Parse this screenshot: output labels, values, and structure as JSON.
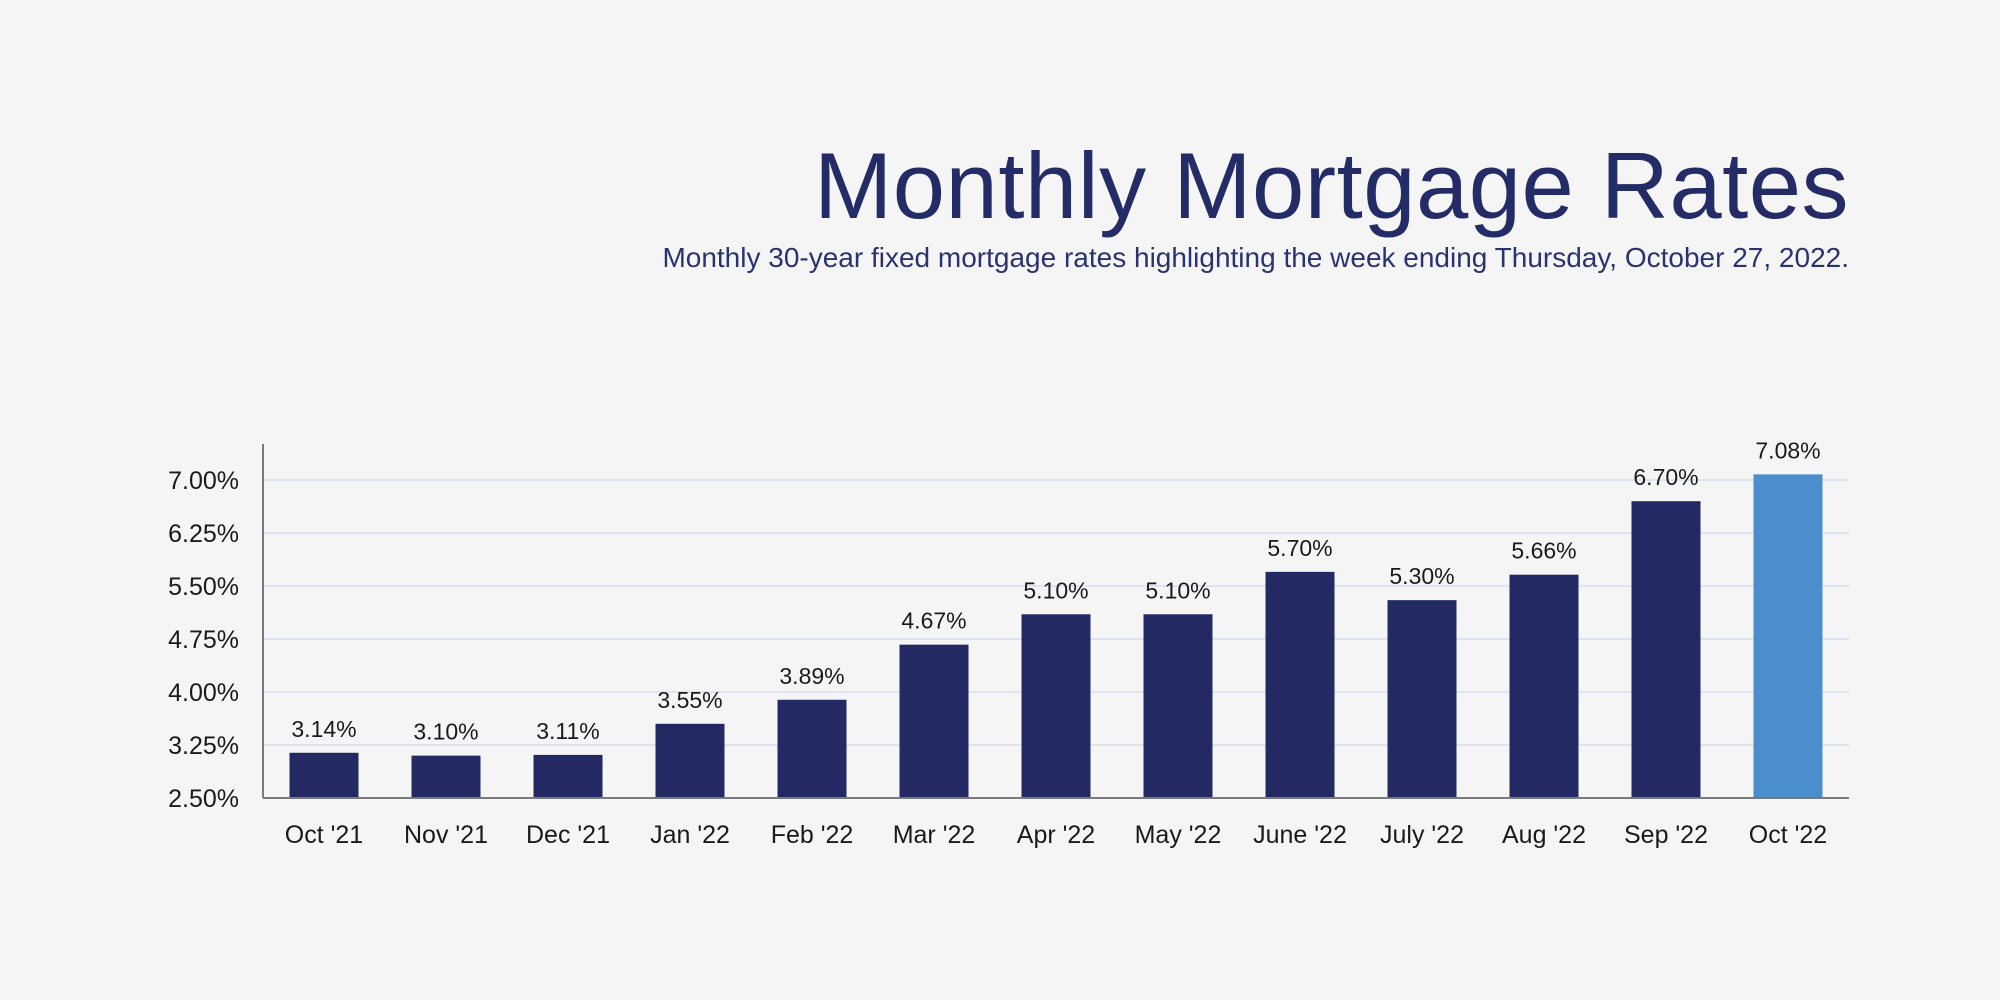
{
  "chart_data": {
    "type": "bar",
    "title": "Monthly Mortgage Rates",
    "subtitle": "Monthly 30-year fixed mortgage rates highlighting the week ending Thursday, October 27, 2022.",
    "categories": [
      "Oct '21",
      "Nov '21",
      "Dec '21",
      "Jan '22",
      "Feb '22",
      "Mar '22",
      "Apr '22",
      "May '22",
      "June '22",
      "July '22",
      "Aug '22",
      "Sep '22",
      "Oct '22"
    ],
    "values": [
      3.14,
      3.1,
      3.11,
      3.55,
      3.89,
      4.67,
      5.1,
      5.1,
      5.7,
      5.3,
      5.66,
      6.7,
      7.08
    ],
    "data_labels": [
      "3.14%",
      "3.10%",
      "3.11%",
      "3.55%",
      "3.89%",
      "4.67%",
      "5.10%",
      "5.10%",
      "5.70%",
      "5.30%",
      "5.66%",
      "6.70%",
      "7.08%"
    ],
    "ylim": [
      2.5,
      7.5
    ],
    "yticks": [
      2.5,
      3.25,
      4.0,
      4.75,
      5.5,
      6.25,
      7.0
    ],
    "ytick_labels": [
      "2.50%",
      "3.25%",
      "4.00%",
      "4.75%",
      "5.50%",
      "6.25%",
      "7.00%"
    ],
    "grid": true,
    "colors": {
      "bar": "#232a63",
      "highlight": "#4a8ecb",
      "grid": "#dde3f0",
      "title": "#232c66"
    },
    "highlight_index": 12
  }
}
